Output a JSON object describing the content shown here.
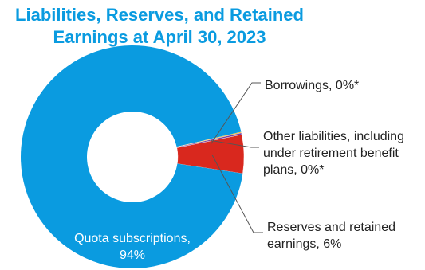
{
  "chart_data": {
    "type": "pie",
    "title_lines": [
      "Liabilities, Reserves, and Retained",
      "Earnings at April 30, 2023"
    ],
    "slices": [
      {
        "key": "quota",
        "value": 94,
        "color": "#0A9BE0",
        "label_lines": [
          "Quota subscriptions,",
          "94%"
        ]
      },
      {
        "key": "reserves",
        "value": 5.6,
        "color": "#D9281E",
        "label_lines": [
          "Reserves and retained",
          "earnings, 6%"
        ]
      },
      {
        "key": "other",
        "value": 0.25,
        "color": "#7B3FA0",
        "label_lines": [
          "Other liabilities, including",
          "under retirement benefit",
          "plans, 0%*"
        ]
      },
      {
        "key": "borrowings",
        "value": 0.15,
        "color": "#F2B418",
        "label_lines": [
          "Borrowings, 0%*"
        ]
      }
    ]
  },
  "colors": {
    "title": "#0A9BE0",
    "label_text": "#222222",
    "leader": "#555555"
  }
}
